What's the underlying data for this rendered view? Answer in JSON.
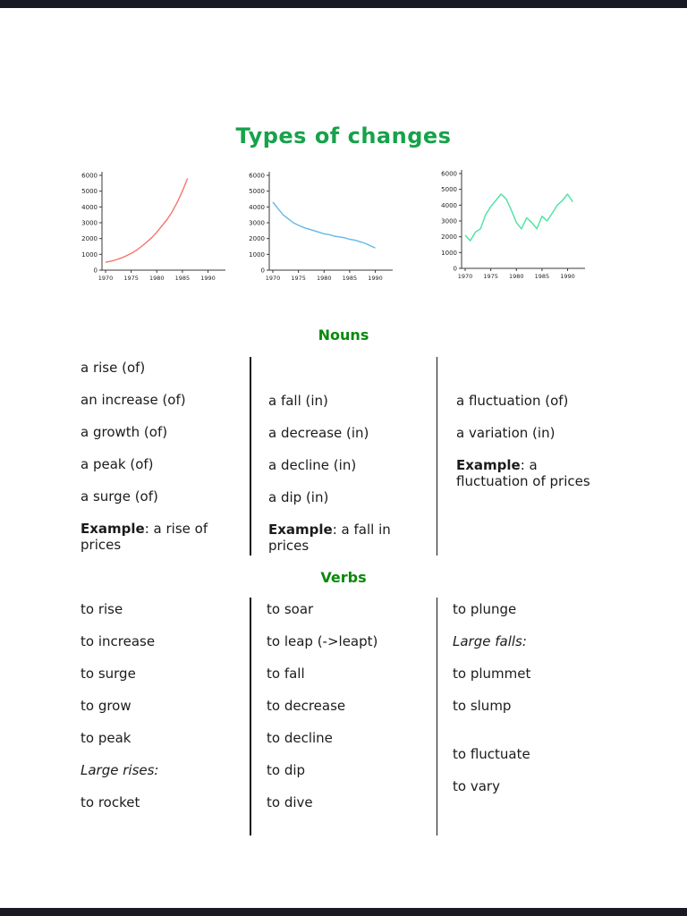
{
  "page": {
    "title": "Types of changes"
  },
  "colors": {
    "title_green": "#17a24b",
    "heading_green": "#0a8a0a",
    "rise_line": "#f4756c",
    "fall_line": "#62b8ea",
    "fluctuation_line": "#4ae2a0",
    "border_bar": "#191923"
  },
  "chart_data": [
    {
      "type": "line",
      "name": "rise",
      "color": "#f4756c",
      "x_ticks": [
        1970,
        1975,
        1980,
        1985,
        1990
      ],
      "y_ticks": [
        0,
        1000,
        2000,
        3000,
        4000,
        5000,
        6000
      ],
      "ylim": [
        0,
        6000
      ],
      "xlim": [
        1968,
        1992
      ],
      "points": [
        [
          1970,
          500
        ],
        [
          1971,
          560
        ],
        [
          1972,
          650
        ],
        [
          1973,
          760
        ],
        [
          1974,
          900
        ],
        [
          1975,
          1060
        ],
        [
          1976,
          1250
        ],
        [
          1977,
          1500
        ],
        [
          1978,
          1760
        ],
        [
          1979,
          2050
        ],
        [
          1980,
          2400
        ],
        [
          1981,
          2800
        ],
        [
          1982,
          3200
        ],
        [
          1983,
          3700
        ],
        [
          1984,
          4300
        ],
        [
          1985,
          5000
        ],
        [
          1986,
          5800
        ]
      ]
    },
    {
      "type": "line",
      "name": "fall",
      "color": "#62b8ea",
      "x_ticks": [
        1970,
        1975,
        1980,
        1985,
        1990
      ],
      "y_ticks": [
        0,
        1000,
        2000,
        3000,
        4000,
        5000,
        6000
      ],
      "ylim": [
        0,
        6000
      ],
      "xlim": [
        1968,
        1992
      ],
      "points": [
        [
          1970,
          4300
        ],
        [
          1971,
          3900
        ],
        [
          1972,
          3500
        ],
        [
          1973,
          3250
        ],
        [
          1974,
          3000
        ],
        [
          1975,
          2850
        ],
        [
          1976,
          2700
        ],
        [
          1977,
          2600
        ],
        [
          1978,
          2500
        ],
        [
          1979,
          2400
        ],
        [
          1980,
          2300
        ],
        [
          1981,
          2250
        ],
        [
          1982,
          2150
        ],
        [
          1983,
          2100
        ],
        [
          1984,
          2050
        ],
        [
          1985,
          1950
        ],
        [
          1986,
          1900
        ],
        [
          1987,
          1800
        ],
        [
          1988,
          1700
        ],
        [
          1989,
          1550
        ],
        [
          1990,
          1400
        ]
      ]
    },
    {
      "type": "line",
      "name": "fluctuation",
      "color": "#4ae2a0",
      "x_ticks": [
        1970,
        1975,
        1980,
        1985,
        1990
      ],
      "y_ticks": [
        0,
        1000,
        2000,
        3000,
        4000,
        5000,
        6000
      ],
      "ylim": [
        0,
        6000
      ],
      "xlim": [
        1968,
        1992
      ],
      "points": [
        [
          1970,
          2100
        ],
        [
          1971,
          1750
        ],
        [
          1972,
          2300
        ],
        [
          1973,
          2500
        ],
        [
          1974,
          3400
        ],
        [
          1975,
          3900
        ],
        [
          1976,
          4300
        ],
        [
          1977,
          4700
        ],
        [
          1978,
          4400
        ],
        [
          1979,
          3700
        ],
        [
          1980,
          2900
        ],
        [
          1981,
          2500
        ],
        [
          1982,
          3200
        ],
        [
          1983,
          2900
        ],
        [
          1984,
          2500
        ],
        [
          1985,
          3300
        ],
        [
          1986,
          3000
        ],
        [
          1987,
          3500
        ],
        [
          1988,
          4000
        ],
        [
          1989,
          4300
        ],
        [
          1990,
          4700
        ],
        [
          1991,
          4200
        ]
      ]
    }
  ],
  "nouns": {
    "heading": "Nouns",
    "columns": [
      {
        "items": [
          "a rise (of)",
          "an increase (of)",
          "a growth (of)",
          "a peak (of)",
          "a surge (of)"
        ],
        "example_label": "Example",
        "example_rest": ": a rise of prices"
      },
      {
        "items": [
          "a fall (in)",
          "a decrease (in)",
          "a decline (in)",
          "a dip (in)"
        ],
        "example_label": "Example",
        "example_rest": ": a fall in prices"
      },
      {
        "items": [
          "a fluctuation (of)",
          "a variation (in)"
        ],
        "example_label": "Example",
        "example_rest": ": a fluctuation of prices"
      }
    ]
  },
  "verbs": {
    "heading": "Verbs",
    "columns": [
      {
        "items": [
          "to rise",
          "to increase",
          "to surge",
          "to grow",
          "to peak",
          "Large rises:",
          "to rocket"
        ]
      },
      {
        "items": [
          "to soar",
          "to leap (->leapt)",
          "to fall",
          "to decrease",
          "to decline",
          "to dip",
          "to dive"
        ]
      },
      {
        "items": [
          "to plunge",
          "Large falls:",
          "to plummet",
          "to slump",
          "to fluctuate",
          "to vary"
        ]
      }
    ]
  }
}
